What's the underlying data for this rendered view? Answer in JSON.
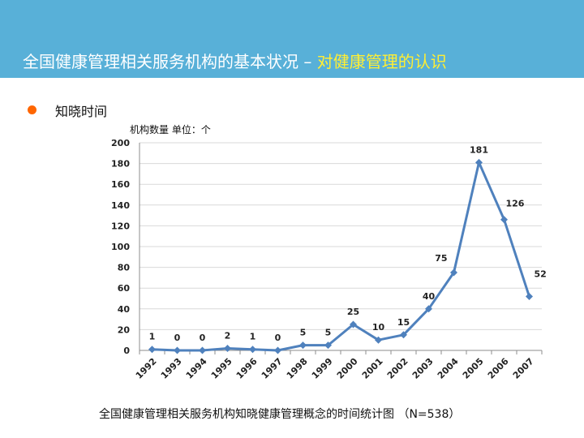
{
  "header": {
    "title_main": "全国健康管理相关服务机构的基本状况",
    "title_dash": " – ",
    "title_highlight": "对健康管理的认识"
  },
  "bullet": {
    "label": "知晓时间"
  },
  "chart_data": {
    "type": "line",
    "title": "",
    "unit_label": "机构数量 单位：个",
    "x": [
      "1992",
      "1993",
      "1994",
      "1995",
      "1996",
      "1997",
      "1998",
      "1999",
      "2000",
      "2001",
      "2002",
      "2003",
      "2004",
      "2005",
      "2006",
      "2007"
    ],
    "values": [
      1,
      0,
      0,
      2,
      1,
      0,
      5,
      5,
      25,
      10,
      15,
      40,
      75,
      181,
      126,
      52
    ],
    "ylim": [
      0,
      200
    ],
    "yticks": [
      0,
      20,
      40,
      60,
      80,
      100,
      120,
      140,
      160,
      180,
      200
    ],
    "grid": true,
    "legend": "none",
    "line_color": "#4f81bd"
  },
  "caption": "全国健康管理相关服务机构知晓健康管理概念的时间统计图 （N=538）"
}
